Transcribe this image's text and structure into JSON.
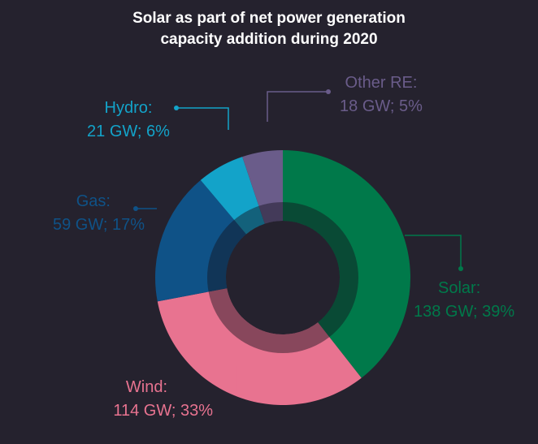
{
  "chart_data": {
    "type": "pie",
    "title_lines": [
      "Solar as part of net power generation",
      "capacity addition during 2020"
    ],
    "slices": [
      {
        "name": "Solar",
        "gw_text": "138 GW; 39%",
        "value": 138,
        "percent": 39,
        "color": "#00794a"
      },
      {
        "name": "Wind",
        "gw_text": "114 GW; 33%",
        "value": 114,
        "percent": 33,
        "color": "#e87390"
      },
      {
        "name": "Gas",
        "gw_text": "59 GW; 17%",
        "value": 59,
        "percent": 17,
        "color": "#0f5287"
      },
      {
        "name": "Hydro",
        "gw_text": "21 GW; 6%",
        "value": 21,
        "percent": 6,
        "color": "#13a3c9"
      },
      {
        "name": "Other RE",
        "gw_text": "18 GW; 5%",
        "value": 18,
        "percent": 5,
        "color": "#6a5c8a"
      }
    ],
    "labels": {
      "solar_name": "Solar:",
      "wind_name": "Wind:",
      "gas_name": "Gas:",
      "hydro_name": "Hydro:",
      "other_name": "Other RE:"
    },
    "style": "donut",
    "background": "#25222e"
  }
}
